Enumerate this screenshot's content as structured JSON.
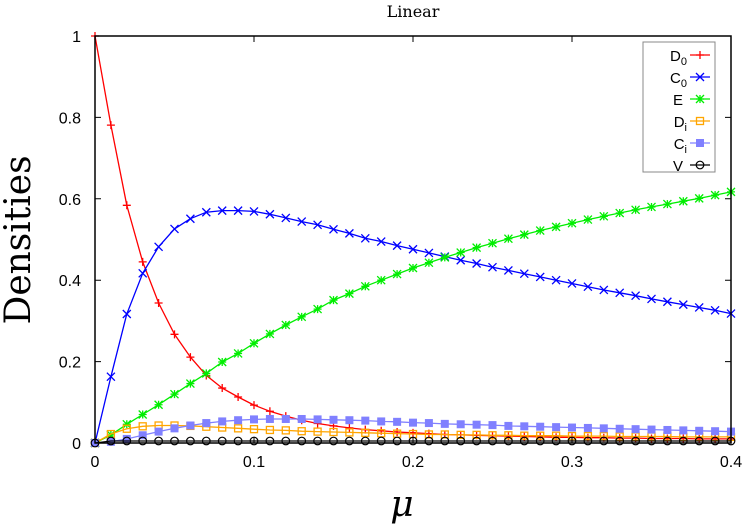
{
  "chart_data": {
    "type": "line",
    "title": "Linear",
    "xlabel": "μ",
    "ylabel": "Densities",
    "xlim": [
      0,
      0.4
    ],
    "ylim": [
      0,
      1
    ],
    "grid": false,
    "legend_position": "top-right",
    "x_ticks": [
      "0",
      "0.1",
      "0.2",
      "0.3",
      "0.4"
    ],
    "y_ticks": [
      "0",
      "0.2",
      "0.4",
      "0.6",
      "0.8",
      "1"
    ],
    "x": [
      0,
      0.01,
      0.02,
      0.03,
      0.04,
      0.05,
      0.06,
      0.07,
      0.08,
      0.09,
      0.1,
      0.11,
      0.12,
      0.13,
      0.14,
      0.15,
      0.16,
      0.17,
      0.18,
      0.19,
      0.2,
      0.21,
      0.22,
      0.23,
      0.24,
      0.25,
      0.26,
      0.27,
      0.28,
      0.29,
      0.3,
      0.31,
      0.32,
      0.33,
      0.34,
      0.35,
      0.36,
      0.37,
      0.38,
      0.39,
      0.4
    ],
    "series": [
      {
        "name": "D0",
        "label_main": "D",
        "label_sub": "0",
        "color": "#ff0000",
        "marker": "plus",
        "values": [
          1,
          0.781,
          0.584,
          0.445,
          0.344,
          0.267,
          0.211,
          0.166,
          0.135,
          0.113,
          0.093,
          0.078,
          0.066,
          0.056,
          0.048,
          0.042,
          0.037,
          0.033,
          0.03,
          0.027,
          0.025,
          0.023,
          0.021,
          0.02,
          0.019,
          0.018,
          0.017,
          0.016,
          0.015,
          0.014,
          0.014,
          0.013,
          0.013,
          0.012,
          0.012,
          0.011,
          0.011,
          0.011,
          0.01,
          0.01,
          0.01
        ]
      },
      {
        "name": "C0",
        "label_main": "C",
        "label_sub": "0",
        "color": "#0000ff",
        "marker": "cross",
        "values": [
          0,
          0.163,
          0.317,
          0.417,
          0.482,
          0.526,
          0.551,
          0.567,
          0.571,
          0.571,
          0.569,
          0.562,
          0.553,
          0.544,
          0.536,
          0.525,
          0.515,
          0.503,
          0.495,
          0.485,
          0.476,
          0.467,
          0.458,
          0.449,
          0.441,
          0.432,
          0.424,
          0.416,
          0.408,
          0.4,
          0.392,
          0.384,
          0.376,
          0.369,
          0.362,
          0.354,
          0.347,
          0.34,
          0.333,
          0.326,
          0.318
        ]
      },
      {
        "name": "E",
        "label_main": "E",
        "label_sub": "",
        "color": "#00ee00",
        "marker": "star",
        "values": [
          0,
          0.02,
          0.046,
          0.07,
          0.094,
          0.12,
          0.146,
          0.171,
          0.199,
          0.22,
          0.245,
          0.268,
          0.29,
          0.31,
          0.329,
          0.351,
          0.367,
          0.385,
          0.4,
          0.415,
          0.43,
          0.443,
          0.456,
          0.468,
          0.48,
          0.491,
          0.502,
          0.512,
          0.522,
          0.531,
          0.54,
          0.549,
          0.557,
          0.565,
          0.573,
          0.58,
          0.587,
          0.594,
          0.601,
          0.609,
          0.617
        ]
      },
      {
        "name": "Di",
        "label_main": "D",
        "label_sub": "i",
        "color": "#ffa500",
        "marker": "square-open",
        "values": [
          0,
          0.022,
          0.035,
          0.041,
          0.043,
          0.043,
          0.042,
          0.04,
          0.038,
          0.036,
          0.034,
          0.032,
          0.031,
          0.029,
          0.028,
          0.027,
          0.026,
          0.025,
          0.024,
          0.023,
          0.022,
          0.021,
          0.021,
          0.02,
          0.02,
          0.019,
          0.019,
          0.018,
          0.018,
          0.018,
          0.017,
          0.017,
          0.017,
          0.016,
          0.016,
          0.016,
          0.016,
          0.015,
          0.015,
          0.015,
          0.015
        ]
      },
      {
        "name": "Ci",
        "label_main": "C",
        "label_sub": "i",
        "color": "#8080ff",
        "marker": "square-filled",
        "values": [
          0,
          0.003,
          0.01,
          0.019,
          0.028,
          0.036,
          0.043,
          0.049,
          0.053,
          0.056,
          0.058,
          0.059,
          0.059,
          0.059,
          0.058,
          0.057,
          0.056,
          0.055,
          0.053,
          0.052,
          0.05,
          0.049,
          0.047,
          0.046,
          0.045,
          0.044,
          0.042,
          0.041,
          0.04,
          0.039,
          0.038,
          0.037,
          0.036,
          0.035,
          0.034,
          0.033,
          0.032,
          0.031,
          0.03,
          0.029,
          0.028
        ]
      },
      {
        "name": "V",
        "label_main": "V",
        "label_sub": "",
        "color": "#000000",
        "marker": "circle-open",
        "values": [
          0,
          0.005,
          0.005,
          0.005,
          0.005,
          0.005,
          0.005,
          0.005,
          0.005,
          0.005,
          0.005,
          0.005,
          0.005,
          0.005,
          0.005,
          0.005,
          0.005,
          0.005,
          0.005,
          0.005,
          0.005,
          0.005,
          0.005,
          0.005,
          0.005,
          0.005,
          0.005,
          0.005,
          0.005,
          0.005,
          0.005,
          0.005,
          0.005,
          0.005,
          0.005,
          0.005,
          0.005,
          0.005,
          0.005,
          0.005,
          0.005
        ]
      }
    ]
  }
}
